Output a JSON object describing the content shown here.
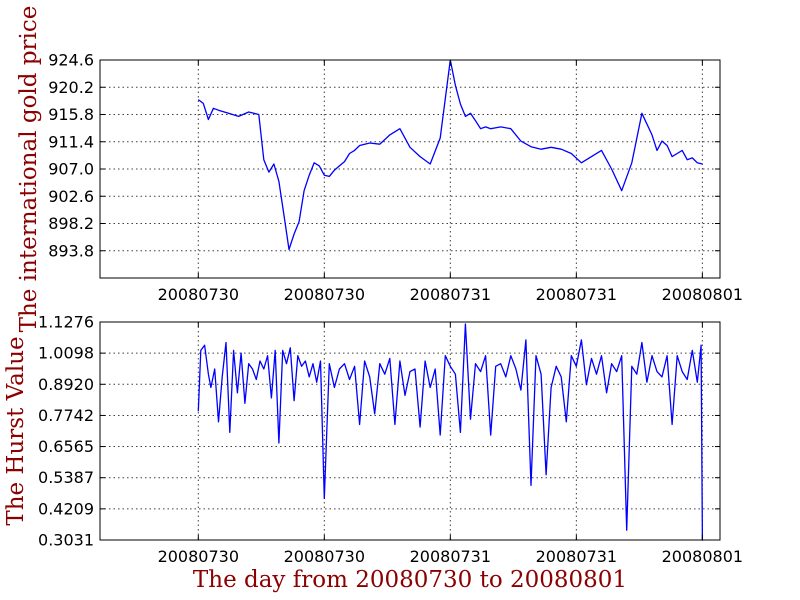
{
  "chart_data": [
    {
      "type": "line",
      "ylabel": "The international gold price",
      "xlabel": "",
      "ylim": [
        889.4,
        924.6
      ],
      "yticks": [
        893.8,
        898.2,
        902.6,
        907.0,
        911.4,
        915.8,
        920.2,
        924.6
      ],
      "ytick_labels": [
        "893.8",
        "898.2",
        "902.6",
        "907.0",
        "911.4",
        "915.8",
        "920.2",
        "924.6"
      ],
      "xlim": [
        -0.78,
        4.14
      ],
      "xticks": [
        0,
        1,
        2,
        3,
        4
      ],
      "xtick_labels": [
        "20080730",
        "20080730",
        "20080731",
        "20080731",
        "20080801"
      ],
      "grid": true,
      "series": [
        {
          "name": "gold price",
          "color": "#0000ff",
          "x": [
            0.0,
            0.04,
            0.08,
            0.12,
            0.16,
            0.24,
            0.32,
            0.4,
            0.48,
            0.52,
            0.56,
            0.6,
            0.64,
            0.68,
            0.72,
            0.76,
            0.8,
            0.84,
            0.88,
            0.92,
            0.96,
            1.0,
            1.04,
            1.08,
            1.12,
            1.16,
            1.2,
            1.24,
            1.28,
            1.36,
            1.44,
            1.52,
            1.6,
            1.68,
            1.76,
            1.84,
            1.92,
            2.0,
            2.04,
            2.08,
            2.12,
            2.16,
            2.2,
            2.24,
            2.28,
            2.32,
            2.4,
            2.48,
            2.56,
            2.64,
            2.72,
            2.8,
            2.88,
            2.96,
            3.04,
            3.12,
            3.2,
            3.28,
            3.36,
            3.44,
            3.52,
            3.6,
            3.64,
            3.68,
            3.72,
            3.76,
            3.8,
            3.84,
            3.88,
            3.92,
            3.96,
            4.0
          ],
          "values": [
            918.2,
            917.6,
            915.0,
            916.8,
            916.5,
            916.0,
            915.5,
            916.2,
            915.8,
            908.5,
            906.5,
            907.8,
            905.0,
            899.5,
            894.0,
            896.5,
            898.5,
            903.5,
            906.0,
            908.0,
            907.5,
            906.0,
            905.8,
            906.8,
            907.5,
            908.2,
            909.5,
            910.0,
            910.8,
            911.2,
            911.0,
            912.5,
            913.5,
            910.5,
            909.0,
            907.8,
            912.0,
            924.6,
            920.5,
            917.5,
            915.5,
            916.0,
            914.8,
            913.5,
            913.8,
            913.5,
            913.8,
            913.5,
            911.5,
            910.6,
            910.2,
            910.5,
            910.2,
            909.5,
            908.0,
            909.0,
            910.0,
            907.0,
            903.5,
            908.0,
            916.0,
            912.5,
            910.0,
            911.5,
            910.8,
            909.0,
            909.5,
            910.0,
            908.5,
            908.8,
            908.0,
            907.8
          ]
        }
      ]
    },
    {
      "type": "line",
      "ylabel": "The Hurst Value",
      "xlabel": "The day from 20080730 to 20080801",
      "ylim": [
        0.3031,
        1.1276
      ],
      "yticks": [
        0.3031,
        0.4209,
        0.5387,
        0.6565,
        0.7742,
        0.892,
        1.0098,
        1.1276
      ],
      "ytick_labels": [
        "0.3031",
        "0.4209",
        "0.5387",
        "0.6565",
        "0.7742",
        "0.8920",
        "1.0098",
        "1.1276"
      ],
      "xlim": [
        -0.78,
        4.14
      ],
      "xticks": [
        0,
        1,
        2,
        3,
        4
      ],
      "xtick_labels": [
        "20080730",
        "20080730",
        "20080731",
        "20080731",
        "20080801"
      ],
      "grid": true,
      "series": [
        {
          "name": "Hurst value",
          "color": "#0000ff",
          "x": [
            0.0,
            0.02,
            0.05,
            0.08,
            0.1,
            0.13,
            0.16,
            0.19,
            0.22,
            0.25,
            0.28,
            0.31,
            0.34,
            0.37,
            0.4,
            0.43,
            0.46,
            0.49,
            0.52,
            0.55,
            0.58,
            0.61,
            0.64,
            0.67,
            0.7,
            0.73,
            0.76,
            0.79,
            0.82,
            0.85,
            0.88,
            0.91,
            0.94,
            0.97,
            1.0,
            1.04,
            1.08,
            1.12,
            1.16,
            1.2,
            1.24,
            1.28,
            1.32,
            1.36,
            1.4,
            1.44,
            1.48,
            1.52,
            1.56,
            1.6,
            1.64,
            1.68,
            1.72,
            1.76,
            1.8,
            1.84,
            1.88,
            1.92,
            1.96,
            2.0,
            2.04,
            2.08,
            2.12,
            2.16,
            2.2,
            2.24,
            2.28,
            2.32,
            2.36,
            2.4,
            2.44,
            2.48,
            2.52,
            2.56,
            2.6,
            2.64,
            2.68,
            2.72,
            2.76,
            2.8,
            2.84,
            2.88,
            2.92,
            2.96,
            3.0,
            3.04,
            3.08,
            3.12,
            3.16,
            3.2,
            3.24,
            3.28,
            3.32,
            3.36,
            3.4,
            3.44,
            3.48,
            3.52,
            3.56,
            3.6,
            3.64,
            3.68,
            3.72,
            3.76,
            3.8,
            3.84,
            3.88,
            3.92,
            3.96,
            3.99,
            4.0
          ],
          "values": [
            0.79,
            1.02,
            1.04,
            0.93,
            0.88,
            0.95,
            0.75,
            0.92,
            1.05,
            0.71,
            1.02,
            0.86,
            1.01,
            0.82,
            0.97,
            0.95,
            0.91,
            0.98,
            0.95,
            1.0,
            0.84,
            1.02,
            0.67,
            1.02,
            0.97,
            1.03,
            0.83,
            1.0,
            0.96,
            0.98,
            0.92,
            0.97,
            0.9,
            0.98,
            0.46,
            0.97,
            0.88,
            0.95,
            0.97,
            0.91,
            0.96,
            0.74,
            0.98,
            0.92,
            0.78,
            0.97,
            0.93,
            0.99,
            0.74,
            0.98,
            0.85,
            0.94,
            0.95,
            0.73,
            0.98,
            0.88,
            0.95,
            0.7,
            1.0,
            0.96,
            0.93,
            0.71,
            1.12,
            0.76,
            0.97,
            0.94,
            1.0,
            0.7,
            0.96,
            0.97,
            0.92,
            1.0,
            0.95,
            0.87,
            1.06,
            0.51,
            1.0,
            0.93,
            0.55,
            0.88,
            0.96,
            0.92,
            0.75,
            1.0,
            0.96,
            1.06,
            0.89,
            0.99,
            0.93,
            1.0,
            0.86,
            0.97,
            0.94,
            1.0,
            0.34,
            0.96,
            0.93,
            1.05,
            0.9,
            1.0,
            0.94,
            0.92,
            1.0,
            0.74,
            1.0,
            0.94,
            0.91,
            1.02,
            0.9,
            1.04,
            0.3
          ]
        }
      ]
    }
  ]
}
